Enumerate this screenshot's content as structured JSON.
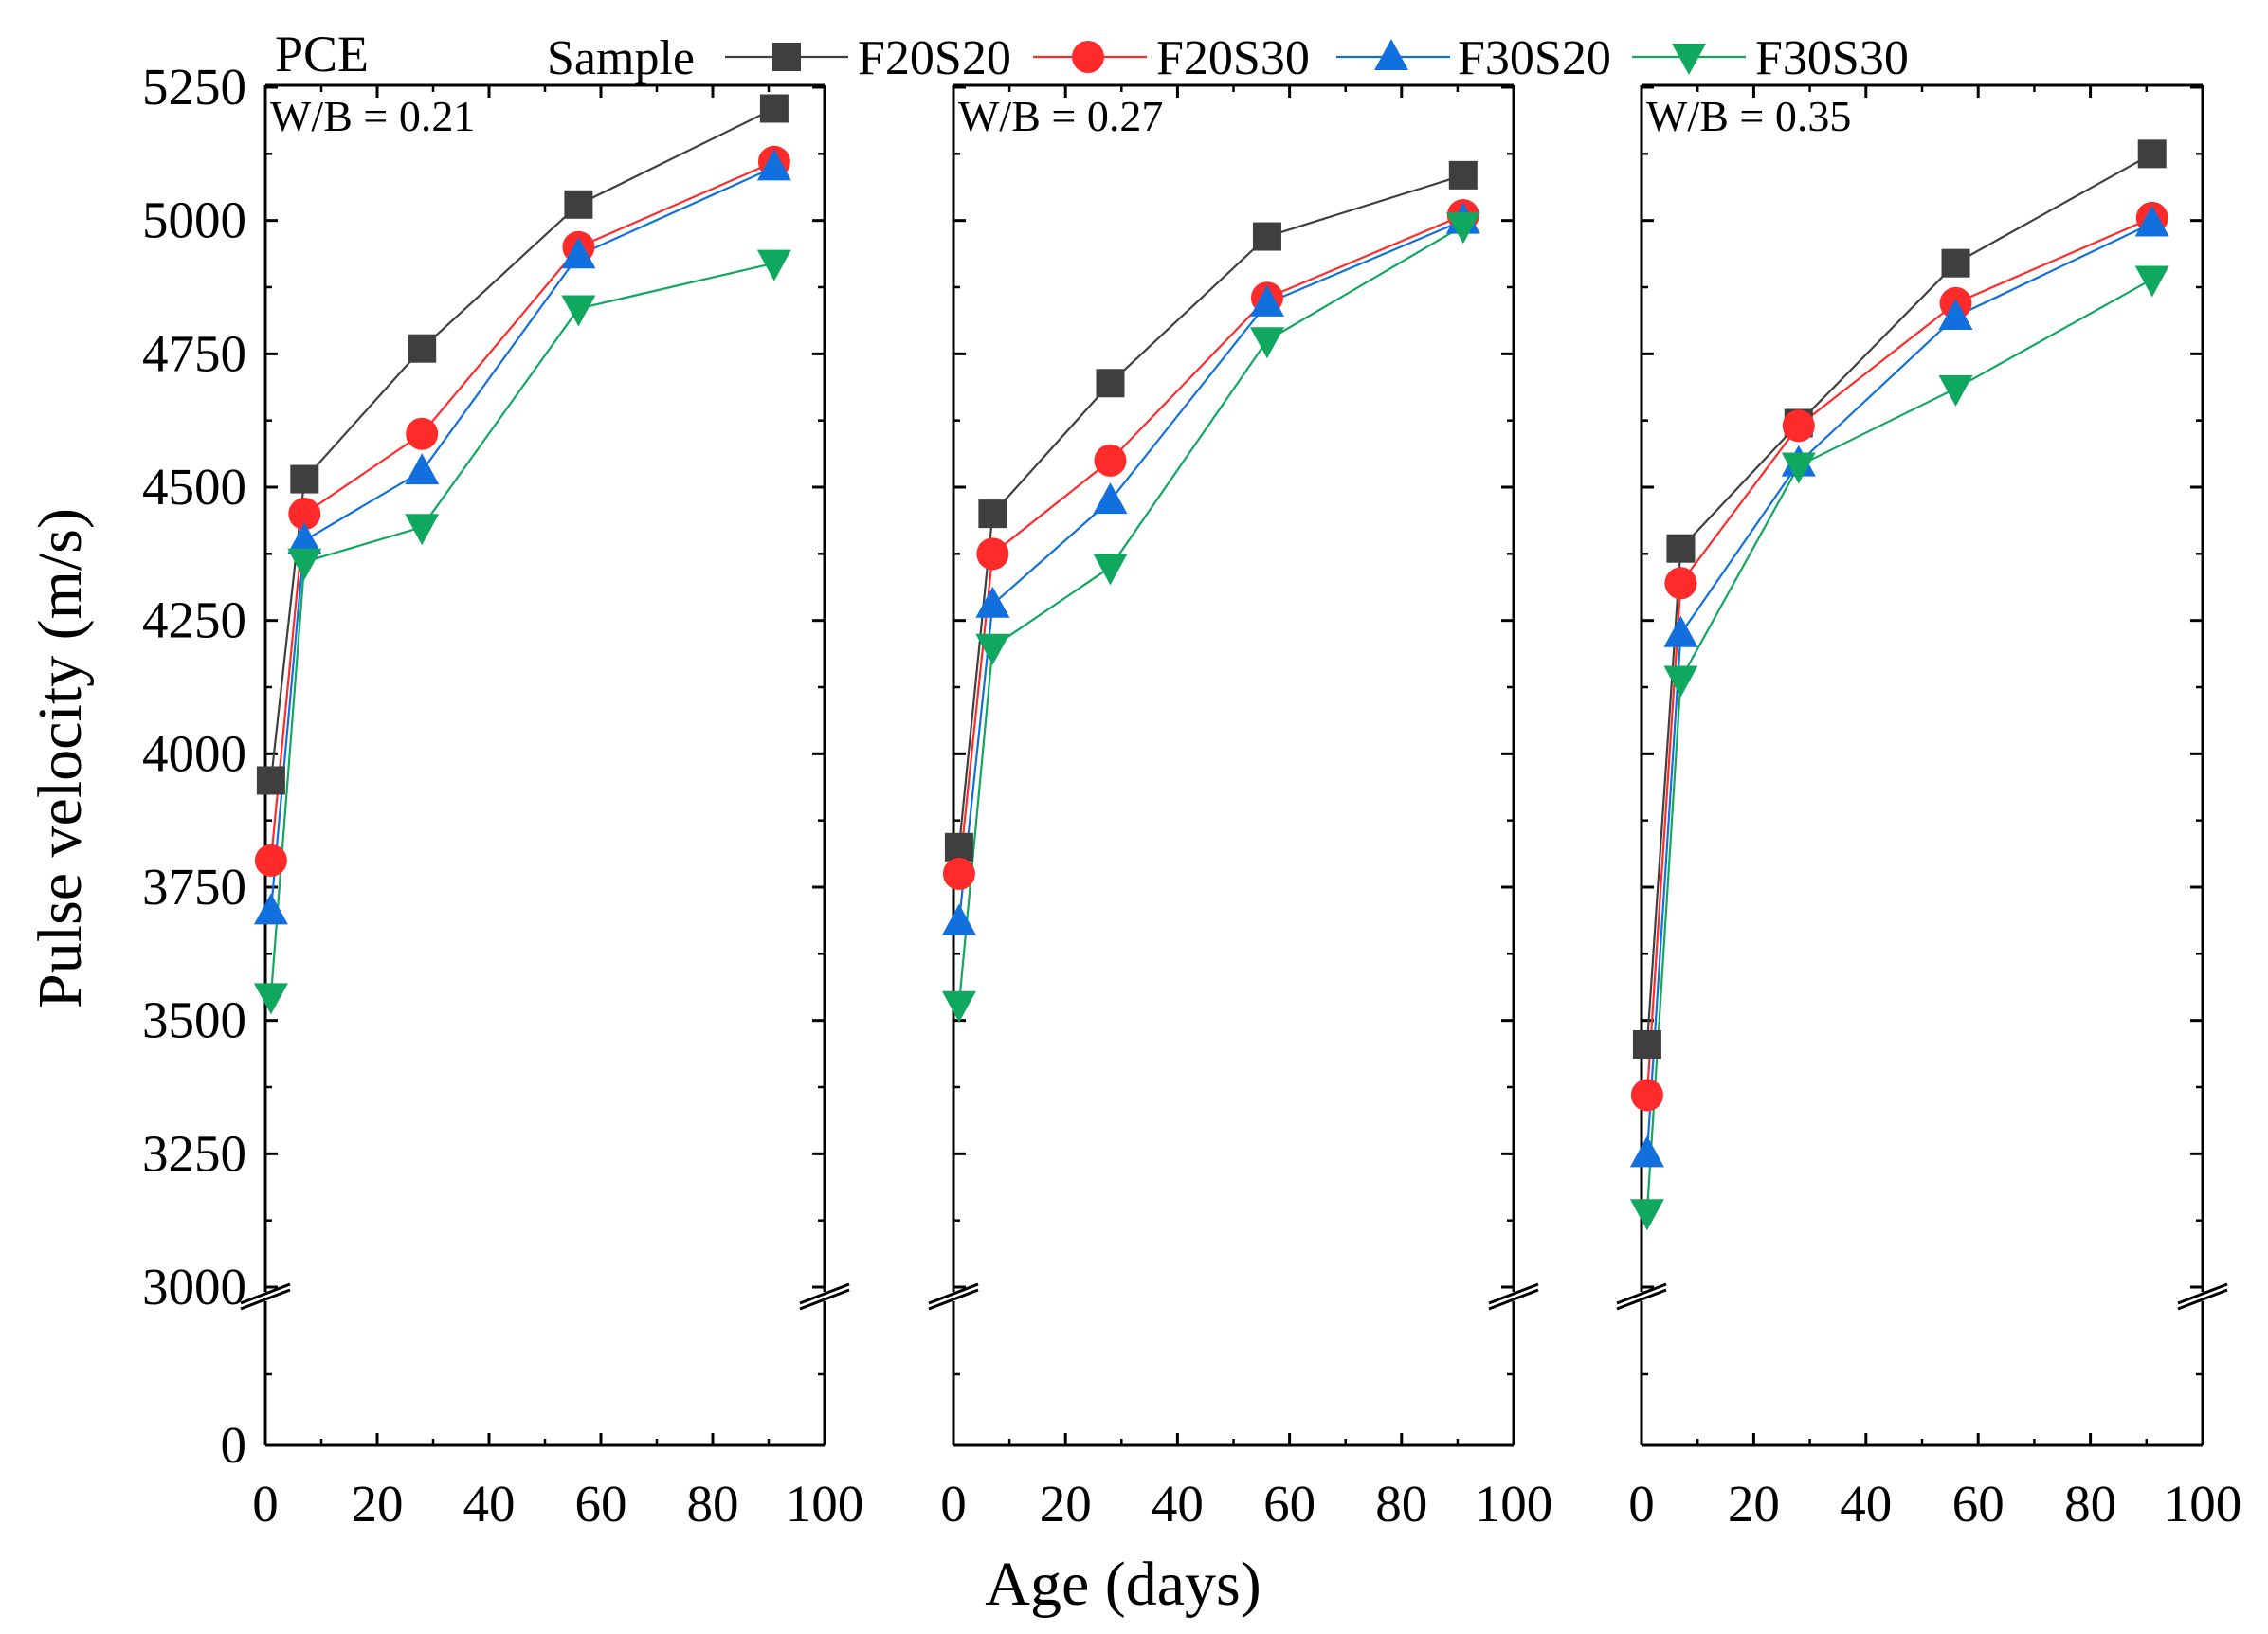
{
  "chart_data": {
    "type": "line",
    "header_label": "PCE",
    "legend_title": "Sample",
    "xlabel": "Age (days)",
    "ylabel": "Pulse velocity (m/s)",
    "xlim": [
      0,
      100
    ],
    "xticks": [
      0,
      20,
      40,
      60,
      80,
      100
    ],
    "yticks": [
      0,
      3000,
      3250,
      3500,
      3750,
      4000,
      4250,
      4500,
      4750,
      5000,
      5250
    ],
    "axis_break": [
      0,
      3000
    ],
    "series_info": [
      {
        "name": "F20S20",
        "color": "#3f3f3f",
        "marker": "square"
      },
      {
        "name": "F20S30",
        "color": "#ff2a2a",
        "marker": "circle"
      },
      {
        "name": "F30S20",
        "color": "#1170de",
        "marker": "triangle-up"
      },
      {
        "name": "F30S30",
        "color": "#10a85e",
        "marker": "triangle-down"
      }
    ],
    "panels": [
      {
        "label": "W/B = 0.21",
        "x": [
          1,
          7,
          28,
          56,
          91
        ],
        "series": [
          {
            "name": "F20S20",
            "values": [
              3950,
              4515,
              4760,
              5030,
              5210
            ]
          },
          {
            "name": "F20S30",
            "values": [
              3800,
              4450,
              4600,
              4950,
              5110
            ]
          },
          {
            "name": "F30S20",
            "values": [
              3705,
              4400,
              4530,
              4935,
              5100
            ]
          },
          {
            "name": "F30S30",
            "values": [
              3545,
              4360,
              4425,
              4835,
              4920
            ]
          }
        ]
      },
      {
        "label": "W/B = 0.27",
        "x": [
          1,
          7,
          28,
          56,
          91
        ],
        "series": [
          {
            "name": "F20S20",
            "values": [
              3825,
              4450,
              4695,
              4970,
              5085
            ]
          },
          {
            "name": "F20S30",
            "values": [
              3775,
              4375,
              4550,
              4855,
              5010
            ]
          },
          {
            "name": "F30S20",
            "values": [
              3685,
              4280,
              4475,
              4845,
              5000
            ]
          },
          {
            "name": "F30S30",
            "values": [
              3530,
              4200,
              4350,
              4775,
              4990
            ]
          }
        ]
      },
      {
        "label": "W/B = 0.35",
        "x": [
          1,
          7,
          28,
          56,
          91
        ],
        "series": [
          {
            "name": "F20S20",
            "values": [
              3455,
              4385,
              4620,
              4920,
              5125
            ]
          },
          {
            "name": "F20S30",
            "values": [
              3360,
              4320,
              4615,
              4845,
              5005
            ]
          },
          {
            "name": "F30S20",
            "values": [
              3250,
              4225,
              4545,
              4820,
              4995
            ]
          },
          {
            "name": "F30S30",
            "values": [
              3140,
              4140,
              4540,
              4685,
              4890
            ]
          }
        ]
      }
    ]
  }
}
